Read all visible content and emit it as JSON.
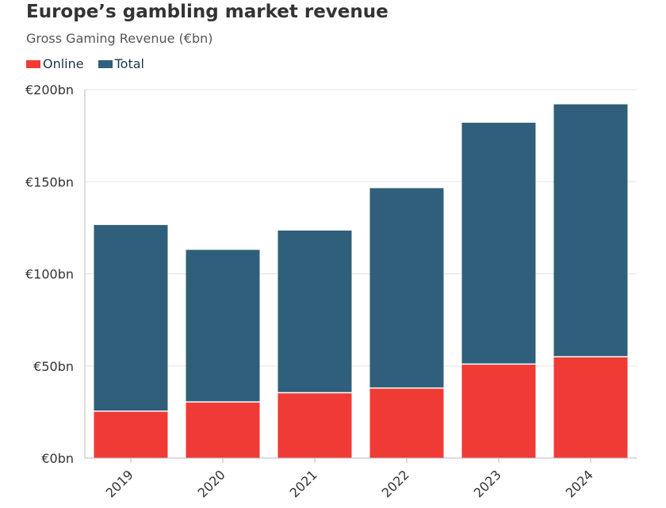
{
  "chart_data": {
    "type": "bar",
    "title": "Europe’s gambling market revenue",
    "subtitle": "Gross Gaming Revenue (€bn)",
    "categories": [
      "2019",
      "2020",
      "2021",
      "2022",
      "2023",
      "2024"
    ],
    "series": [
      {
        "name": "Online",
        "color": "#f03a35",
        "values": [
          25.5,
          30.5,
          35.5,
          38,
          51,
          55
        ]
      },
      {
        "name": "Total",
        "color": "#2f5f7a",
        "values": [
          126.5,
          113,
          123.5,
          146.5,
          182,
          192
        ]
      }
    ],
    "ylim": [
      0,
      200
    ],
    "yticks": [
      0,
      50,
      100,
      150,
      200
    ],
    "ytick_labels": [
      "€0bn",
      "€50bn",
      "€100bn",
      "€150bn",
      "€200bn"
    ],
    "grid": true,
    "legend_position": "top-left"
  }
}
